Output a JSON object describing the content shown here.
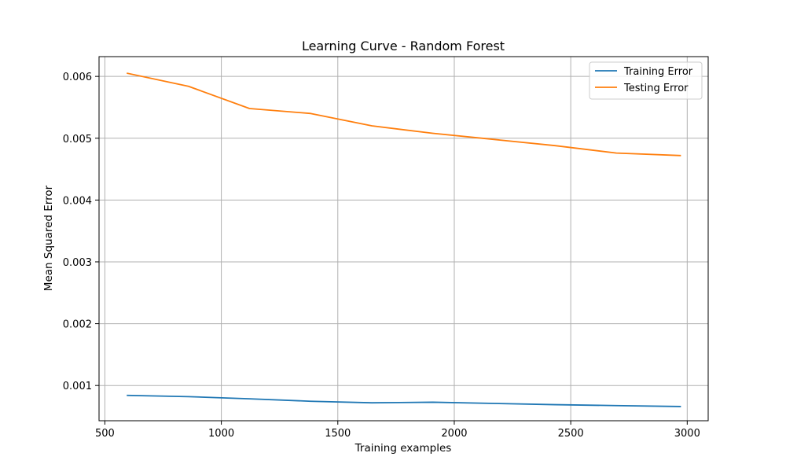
{
  "chart_data": {
    "type": "line",
    "title": "Learning Curve - Random Forest",
    "xlabel": "Training examples",
    "ylabel": "Mean Squared Error",
    "xlim": [
      475,
      3090
    ],
    "ylim": [
      0.00043,
      0.00632
    ],
    "xticks": [
      500,
      1000,
      1500,
      2000,
      2500,
      3000
    ],
    "xtick_labels": [
      "500",
      "1000",
      "1500",
      "2000",
      "2500",
      "3000"
    ],
    "yticks": [
      0.001,
      0.002,
      0.003,
      0.004,
      0.005,
      0.006
    ],
    "ytick_labels": [
      "0.001",
      "0.002",
      "0.003",
      "0.004",
      "0.005",
      "0.006"
    ],
    "grid": true,
    "legend_position": "upper right",
    "x": [
      597,
      859,
      1121,
      1384,
      1646,
      1908,
      2171,
      2433,
      2696,
      2970
    ],
    "series": [
      {
        "name": "Training Error",
        "color": "#1f77b4",
        "values": [
          0.00084,
          0.00082,
          0.000785,
          0.000745,
          0.00072,
          0.00073,
          0.00071,
          0.00069,
          0.000675,
          0.00066
        ]
      },
      {
        "name": "Testing Error",
        "color": "#ff7f0e",
        "values": [
          0.00605,
          0.00584,
          0.00548,
          0.0054,
          0.0052,
          0.00508,
          0.00498,
          0.00488,
          0.00476,
          0.00472
        ]
      }
    ]
  }
}
